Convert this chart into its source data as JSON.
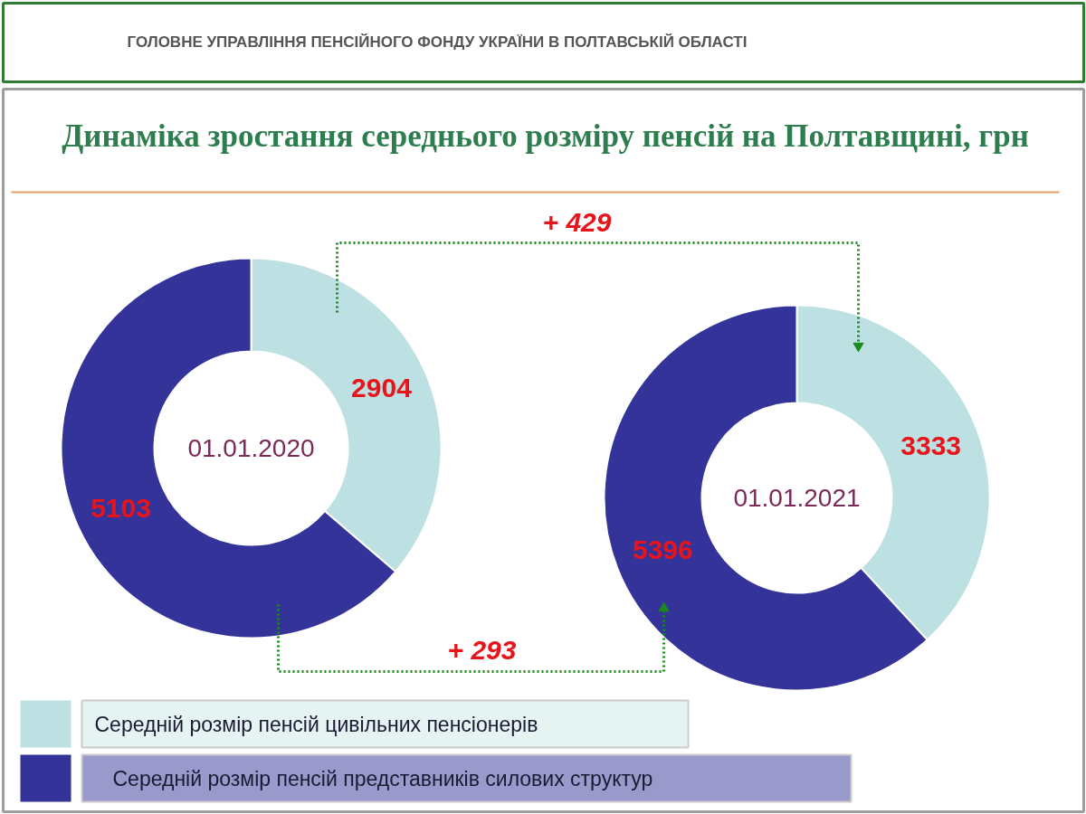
{
  "chart_data": [
    {
      "type": "donut",
      "title": "01.01.2020",
      "categories": [
        "Середній розмір пенсій цивільних пенсіонерів",
        "Середній розмір пенсій представників силових структур"
      ],
      "values": [
        2904,
        5103
      ],
      "colors": [
        "#bde0e3",
        "#333399"
      ],
      "data_labels": true,
      "legend": "bottom",
      "annotations": [
        "ГОЛОВНЕ УПРАВЛІННЯ ПЕНСІЙНОГО ФОНДУ УКРАЇНИ В ПОЛТАВСЬКІЙ ОБЛАСТІ",
        "Динаміка зростання середнього розміру пенсій на Полтавщині, грн"
      ]
    },
    {
      "type": "donut",
      "title": "01.01.2021",
      "categories": [
        null,
        null
      ],
      "values": [
        3333,
        5396
      ],
      "colors": [
        "#bde0e3",
        "#333399"
      ],
      "data_labels": true,
      "annotations": [
        "+ 429",
        "+ 293"
      ]
    }
  ]
}
